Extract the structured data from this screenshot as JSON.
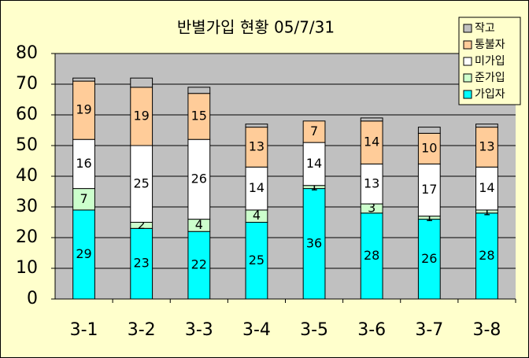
{
  "chart_data": {
    "type": "stacked_bar",
    "title": "반별가입 현황 05/7/31",
    "categories": [
      "3-1",
      "3-2",
      "3-3",
      "3-4",
      "3-5",
      "3-6",
      "3-7",
      "3-8"
    ],
    "series": [
      {
        "name": "가입자",
        "color": "#00ffff",
        "labels": true,
        "values": [
          29,
          23,
          22,
          25,
          36,
          28,
          26,
          28
        ]
      },
      {
        "name": "준가입",
        "color": "#ccffcc",
        "labels": true,
        "values": [
          7,
          2,
          4,
          4,
          1,
          3,
          1,
          1
        ]
      },
      {
        "name": "미가입",
        "color": "#ffffff",
        "labels": true,
        "values": [
          16,
          25,
          26,
          14,
          14,
          13,
          17,
          14
        ]
      },
      {
        "name": "통불자",
        "color": "#ffcc99",
        "labels": true,
        "values": [
          19,
          19,
          15,
          13,
          7,
          14,
          10,
          13
        ]
      },
      {
        "name": "작고",
        "color": "#c0c0c0",
        "labels": false,
        "values": [
          1,
          3,
          2,
          1,
          0,
          1,
          2,
          1
        ]
      }
    ],
    "ylim": [
      0,
      80
    ],
    "yticks": [
      0,
      10,
      20,
      30,
      40,
      50,
      60,
      70,
      80
    ],
    "grid": true,
    "legend": "top-right"
  }
}
